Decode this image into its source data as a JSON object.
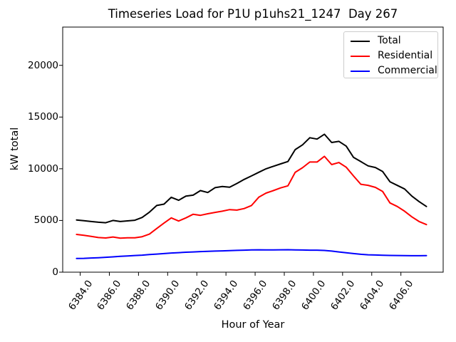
{
  "chart_data": {
    "type": "line",
    "title": "Timeseries Load for P1U p1uhs21_1247  Day 267",
    "xlabel": "Hour of Year",
    "ylabel": "kW total",
    "xlim": [
      6382.8,
      6408.9
    ],
    "ylim": [
      0,
      23700
    ],
    "grid": false,
    "legend_position": "upper right",
    "x_ticks": [
      6384,
      6386,
      6388,
      6390,
      6392,
      6394,
      6396,
      6398,
      6400,
      6402,
      6404,
      6406
    ],
    "x_tick_labels": [
      "6384.0",
      "6386.0",
      "6388.0",
      "6390.0",
      "6392.0",
      "6394.0",
      "6396.0",
      "6398.0",
      "6400.0",
      "6402.0",
      "6404.0",
      "6406.0"
    ],
    "y_ticks": [
      0,
      5000,
      10000,
      15000,
      20000
    ],
    "y_tick_labels": [
      "0",
      "5000",
      "10000",
      "15000",
      "20000"
    ],
    "x": [
      6383.75,
      6384.25,
      6384.75,
      6385.25,
      6385.75,
      6386.25,
      6386.75,
      6387.25,
      6387.75,
      6388.25,
      6388.75,
      6389.25,
      6389.75,
      6390.25,
      6390.75,
      6391.25,
      6391.75,
      6392.25,
      6392.75,
      6393.25,
      6393.75,
      6394.25,
      6394.75,
      6395.25,
      6395.75,
      6396.25,
      6396.75,
      6397.25,
      6397.75,
      6398.25,
      6398.75,
      6399.25,
      6399.75,
      6400.25,
      6400.75,
      6401.25,
      6401.75,
      6402.25,
      6402.75,
      6403.25,
      6403.75,
      6404.25,
      6404.75,
      6405.25,
      6405.75,
      6406.25,
      6406.75,
      6407.25,
      6407.75
    ],
    "series": [
      {
        "name": "Total",
        "color": "#000000",
        "values": [
          5050,
          4980,
          4900,
          4830,
          4780,
          5000,
          4900,
          4960,
          5020,
          5290,
          5800,
          6450,
          6580,
          7240,
          6950,
          7360,
          7450,
          7890,
          7700,
          8170,
          8280,
          8210,
          8580,
          8970,
          9310,
          9660,
          10000,
          10240,
          10470,
          10700,
          11850,
          12310,
          13000,
          12870,
          13340,
          12540,
          12650,
          12190,
          11100,
          10690,
          10280,
          10120,
          9730,
          8740,
          8390,
          8050,
          7360,
          6830,
          6350
        ]
      },
      {
        "name": "Residential",
        "color": "#ff0000",
        "values": [
          3650,
          3560,
          3460,
          3350,
          3310,
          3400,
          3290,
          3330,
          3330,
          3430,
          3680,
          4220,
          4750,
          5250,
          4950,
          5250,
          5600,
          5500,
          5650,
          5780,
          5900,
          6050,
          6000,
          6150,
          6450,
          7250,
          7650,
          7890,
          8150,
          8350,
          9650,
          10100,
          10650,
          10650,
          11200,
          10400,
          10600,
          10150,
          9300,
          8500,
          8400,
          8200,
          7800,
          6700,
          6350,
          5900,
          5350,
          4900,
          4600
        ]
      },
      {
        "name": "Commercial",
        "color": "#0000ff",
        "values": [
          1330,
          1340,
          1370,
          1400,
          1440,
          1480,
          1530,
          1570,
          1610,
          1650,
          1700,
          1750,
          1800,
          1850,
          1890,
          1930,
          1960,
          1990,
          2010,
          2040,
          2060,
          2080,
          2110,
          2130,
          2150,
          2160,
          2150,
          2150,
          2160,
          2170,
          2150,
          2140,
          2130,
          2130,
          2100,
          2040,
          1960,
          1880,
          1800,
          1730,
          1680,
          1660,
          1640,
          1620,
          1610,
          1600,
          1590,
          1590,
          1600
        ]
      }
    ]
  }
}
